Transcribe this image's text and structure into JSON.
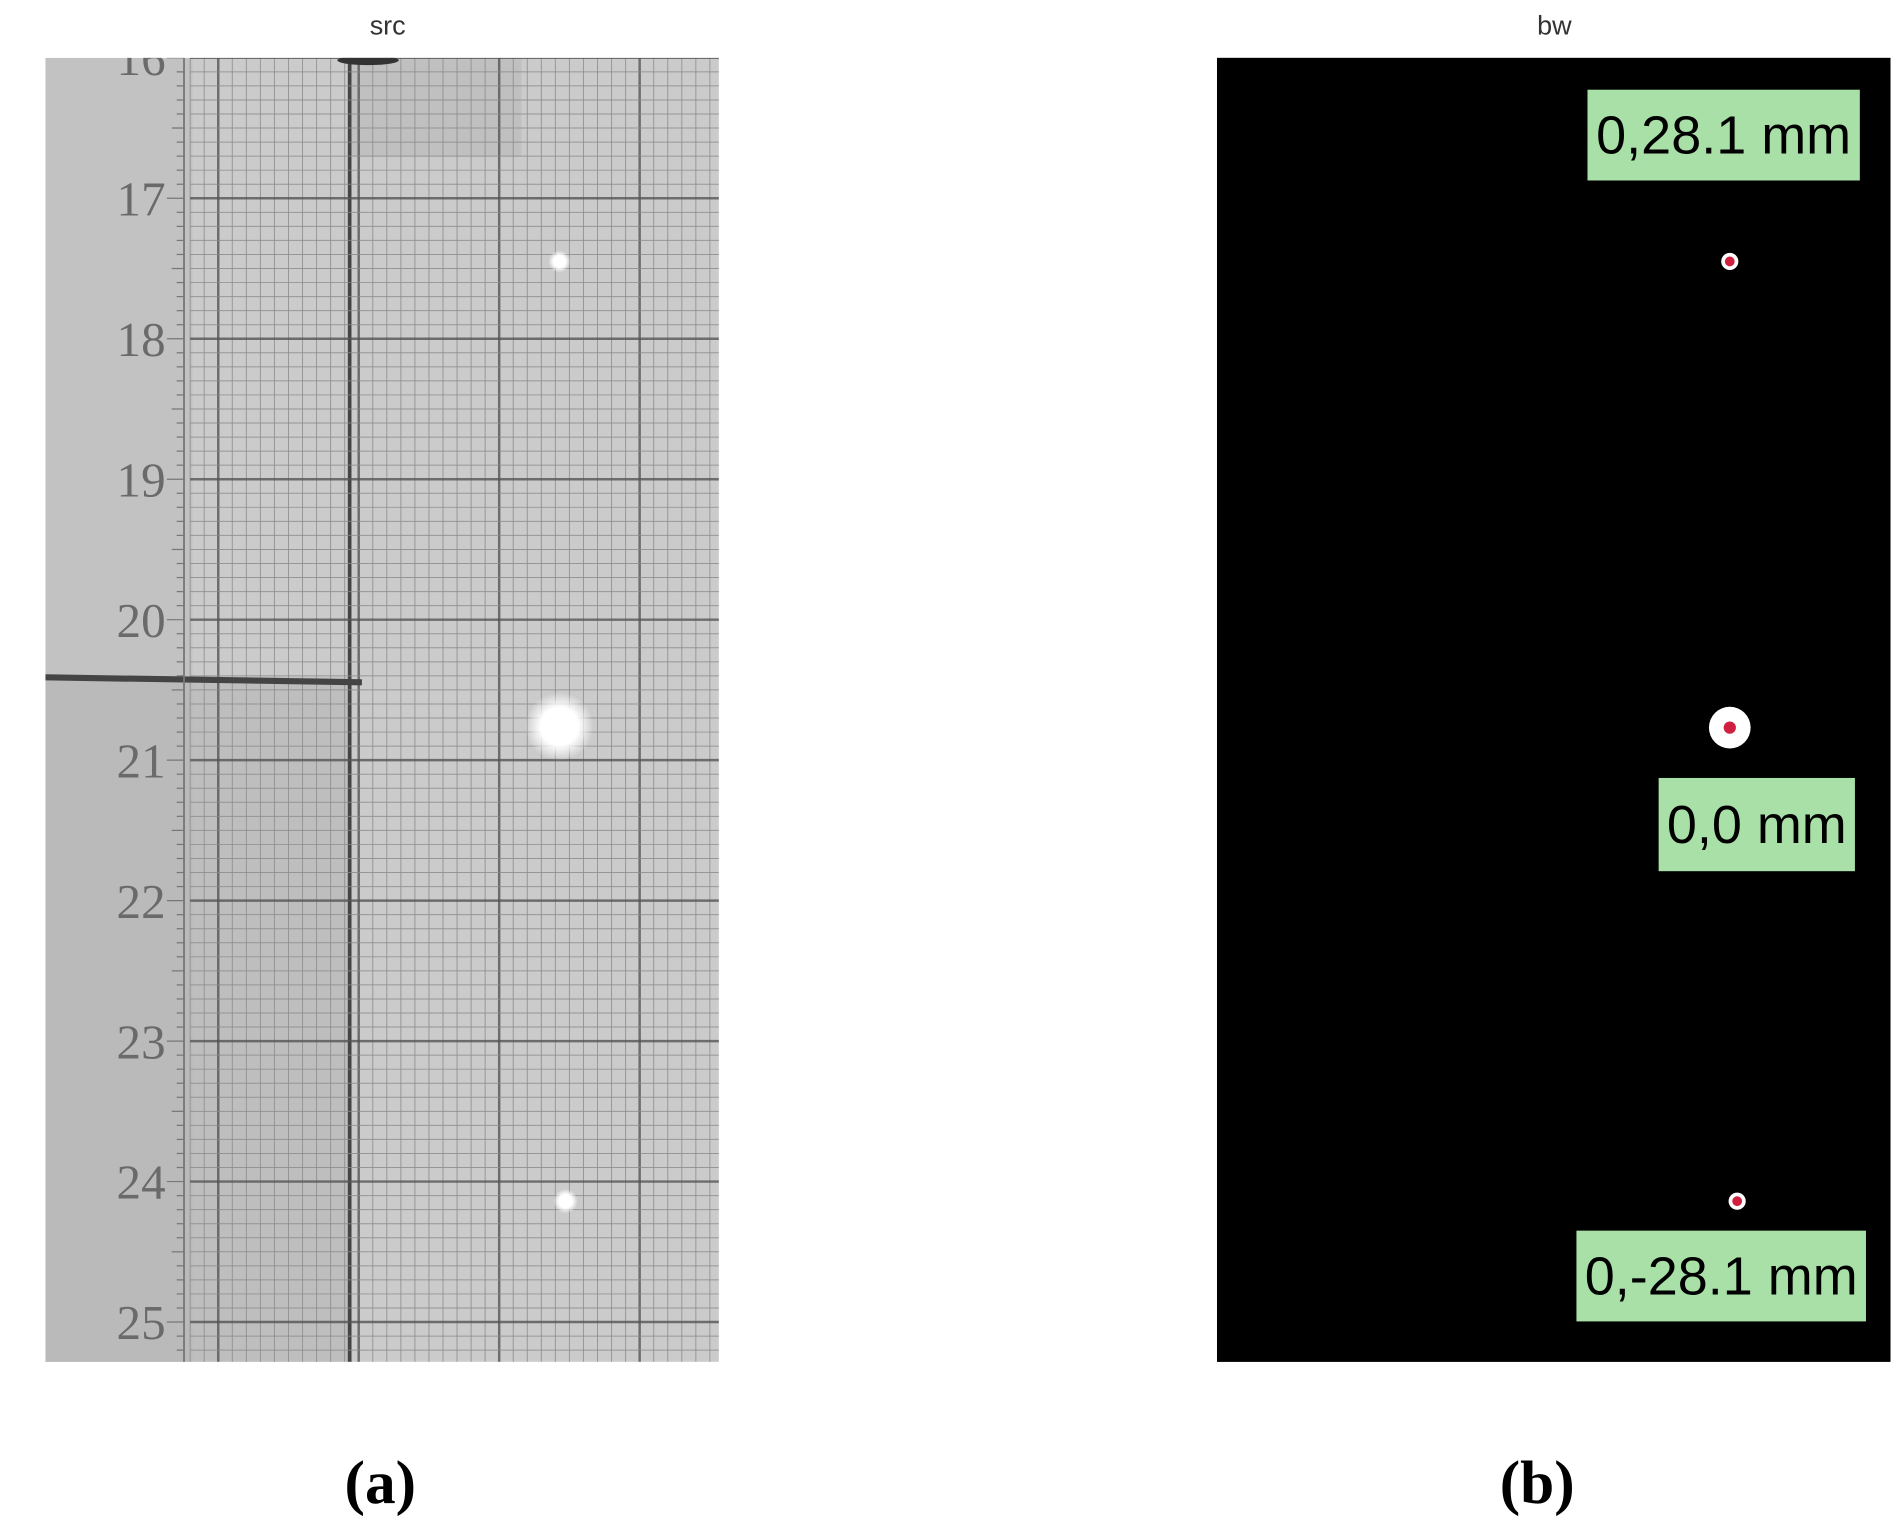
{
  "panels": [
    {
      "title": "src",
      "ruler_labels": [
        "16",
        "17",
        "18",
        "19",
        "20",
        "21",
        "22",
        "23",
        "24",
        "25"
      ],
      "caption": "(a)"
    },
    {
      "title": "bw",
      "annotations": [
        "0,28.1 mm",
        "0,0 mm",
        "0,-28.1 mm"
      ],
      "caption": "(b)"
    }
  ]
}
